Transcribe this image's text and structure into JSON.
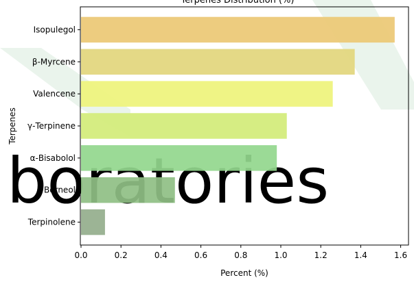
{
  "chart_data": {
    "type": "bar",
    "orientation": "horizontal",
    "title": "Terpenes Distribution (%)",
    "xlabel": "Percent (%)",
    "ylabel": "Terpenes",
    "categories": [
      "Isopulegol",
      "β-Myrcene",
      "Valencene",
      "γ-Terpinene",
      "α-Bisabolol",
      "Borneol",
      "Terpinolene"
    ],
    "values": [
      1.57,
      1.37,
      1.26,
      1.03,
      0.98,
      0.47,
      0.12
    ],
    "colors": [
      "#ebc874",
      "#e2d67c",
      "#eef37b",
      "#d2ec78",
      "#93d78d",
      "#8fbf84",
      "#94ae8c"
    ],
    "xlim": [
      0,
      1.65
    ],
    "xticks": [
      "0.0",
      "0.2",
      "0.4",
      "0.6",
      "0.8",
      "1.0",
      "1.2",
      "1.4",
      "1.6"
    ],
    "grid": false,
    "legend": "none"
  },
  "watermark": {
    "text": "boratories",
    "color": "#e4f0e7",
    "shape_color": "#e8f3ea"
  }
}
